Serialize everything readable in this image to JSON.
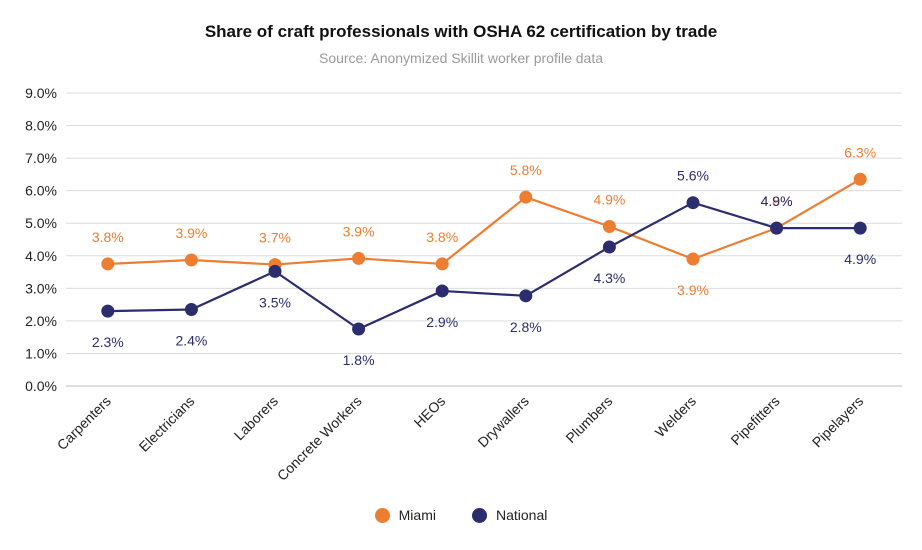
{
  "chart_data": {
    "type": "line",
    "title": "Share of craft professionals with OSHA 62 certification by trade",
    "subtitle": "Source: Anonymized Skillit worker profile data",
    "categories": [
      "Carpenters",
      "Electricians",
      "Laborers",
      "Concrete Workers",
      "HEOs",
      "Drywallers",
      "Plumbers",
      "Welders",
      "Pipefitters",
      "Pipelayers"
    ],
    "y_ticks": [
      "0.0%",
      "1.0%",
      "2.0%",
      "3.0%",
      "4.0%",
      "5.0%",
      "6.0%",
      "7.0%",
      "8.0%",
      "9.0%"
    ],
    "ylim": [
      0,
      9
    ],
    "xlabel": "",
    "ylabel": "",
    "grid": true,
    "legend_position": "bottom-center",
    "series": [
      {
        "name": "Miami",
        "color": "#ED7D31",
        "values": [
          3.75,
          3.87,
          3.73,
          3.92,
          3.75,
          5.8,
          4.9,
          3.9,
          4.85,
          6.35
        ],
        "labels": [
          "3.8%",
          "3.9%",
          "3.7%",
          "3.9%",
          "3.8%",
          "5.8%",
          "4.9%",
          "3.9%",
          "4.8%",
          "6.3%"
        ]
      },
      {
        "name": "National",
        "color": "#2B2D6E",
        "values": [
          2.3,
          2.35,
          3.52,
          1.75,
          2.92,
          2.77,
          4.27,
          5.63,
          4.85,
          4.85
        ],
        "labels": [
          "2.3%",
          "2.4%",
          "3.5%",
          "1.8%",
          "2.9%",
          "2.8%",
          "4.3%",
          "5.6%",
          "4.9%",
          "4.9%"
        ]
      }
    ]
  }
}
